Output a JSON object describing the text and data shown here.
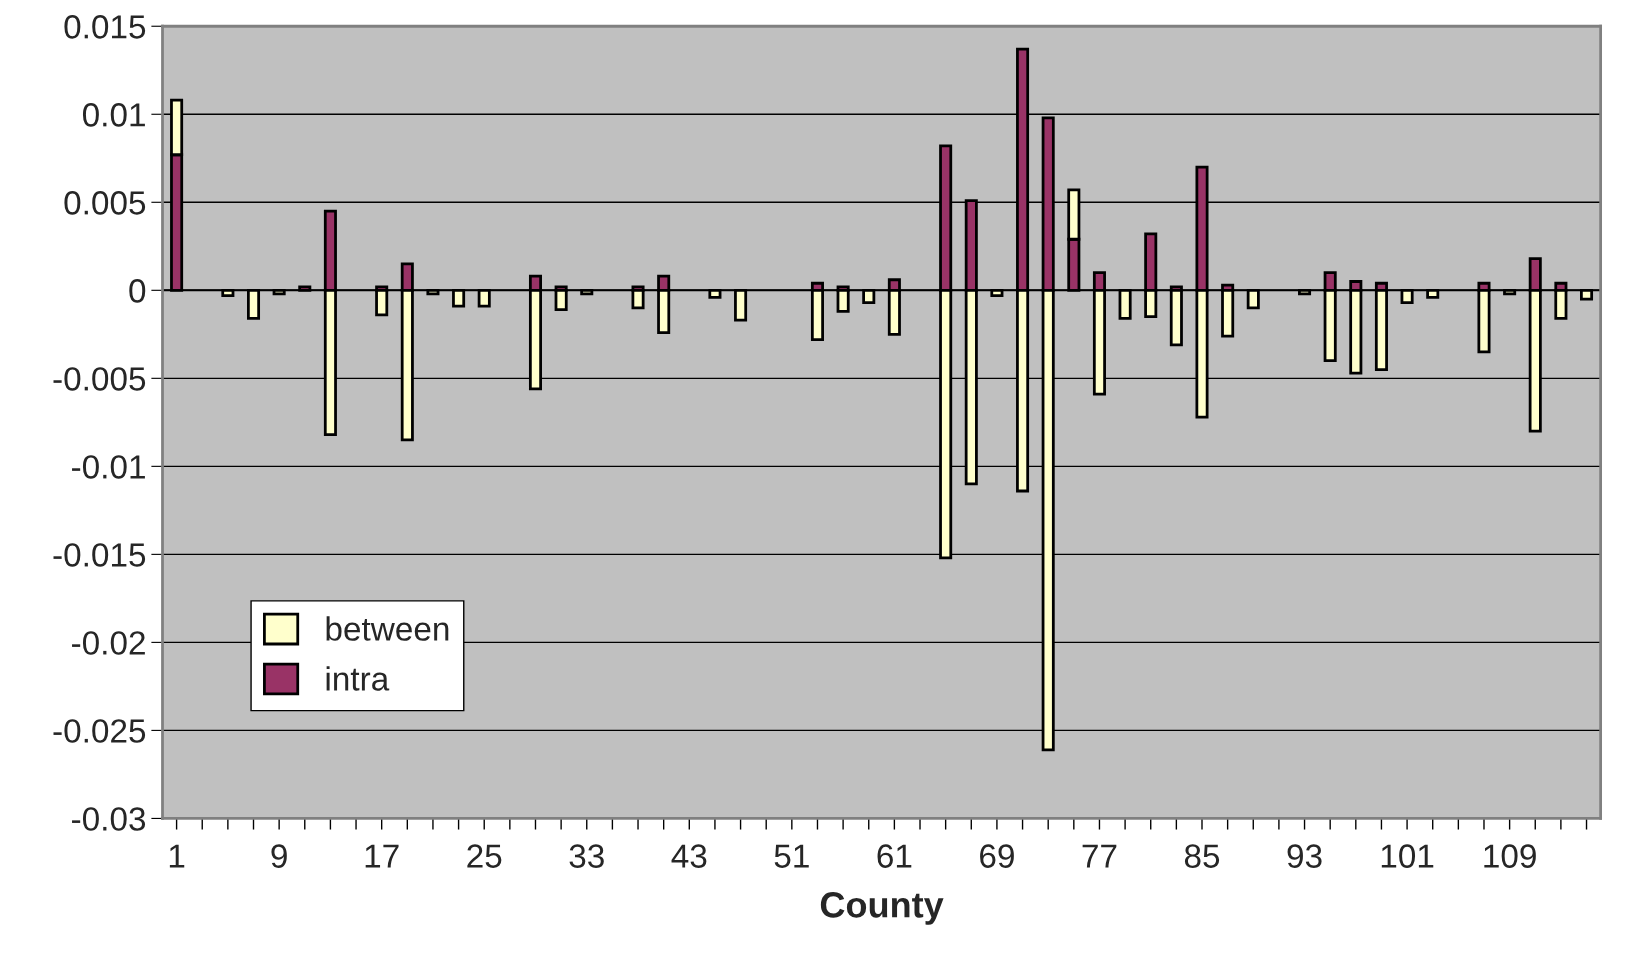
{
  "chart_data": {
    "type": "bar",
    "stacked": true,
    "xlabel": "County",
    "categories": [
      "1",
      null,
      null,
      null,
      "9",
      null,
      null,
      null,
      "17",
      null,
      null,
      null,
      "25",
      null,
      null,
      null,
      "33",
      null,
      null,
      null,
      "43",
      null,
      null,
      null,
      "51",
      null,
      null,
      null,
      "61",
      null,
      null,
      null,
      "69",
      null,
      null,
      null,
      "77",
      null,
      null,
      null,
      "85",
      null,
      null,
      null,
      "93",
      null,
      null,
      null,
      "101",
      null,
      null,
      null,
      "109",
      null,
      null,
      null
    ],
    "series": [
      {
        "name": "intra",
        "color": "#993366",
        "values": [
          0.0077,
          0,
          0,
          0,
          0,
          0.0002,
          0.0045,
          0,
          0.0002,
          0.0015,
          0,
          0,
          0,
          0,
          0.0008,
          0.0002,
          0,
          0,
          0.0002,
          0.0008,
          0,
          0,
          0,
          0,
          0,
          0.0004,
          0.0002,
          0,
          0.0006,
          0,
          0.0082,
          0.0051,
          0,
          0.0137,
          0.0098,
          0.0029,
          0.001,
          0,
          0.0032,
          0.0002,
          0.007,
          0.0003,
          0,
          0,
          0,
          0.001,
          0.0005,
          0.0004,
          0,
          0,
          0,
          0.0004,
          0,
          0.0018,
          0.0004,
          0
        ]
      },
      {
        "name": "between",
        "color": "#ffffcc",
        "values": [
          0.0031,
          0,
          -0.0003,
          -0.0016,
          -0.0002,
          0,
          -0.0082,
          0,
          -0.0014,
          -0.0085,
          -0.0002,
          -0.0009,
          -0.0009,
          0,
          -0.0056,
          -0.0011,
          -0.0002,
          0,
          -0.001,
          -0.0024,
          0,
          -0.0004,
          -0.0017,
          0,
          0,
          -0.0028,
          -0.0012,
          -0.0007,
          -0.0025,
          0,
          -0.0152,
          -0.011,
          -0.0003,
          -0.0114,
          -0.0261,
          0.0028,
          -0.0059,
          -0.0016,
          -0.0015,
          -0.0031,
          -0.0072,
          -0.0026,
          -0.001,
          0,
          -0.0002,
          -0.004,
          -0.0047,
          -0.0045,
          -0.0007,
          -0.0004,
          0,
          -0.0035,
          -0.0002,
          -0.008,
          -0.0016,
          -0.0005
        ]
      }
    ],
    "ylim": [
      -0.03,
      0.015
    ],
    "yticks": [
      -0.03,
      -0.025,
      -0.02,
      -0.015,
      -0.01,
      -0.005,
      0,
      0.005,
      0.01,
      0.015
    ],
    "grid": "y",
    "legend": "bottom left"
  }
}
